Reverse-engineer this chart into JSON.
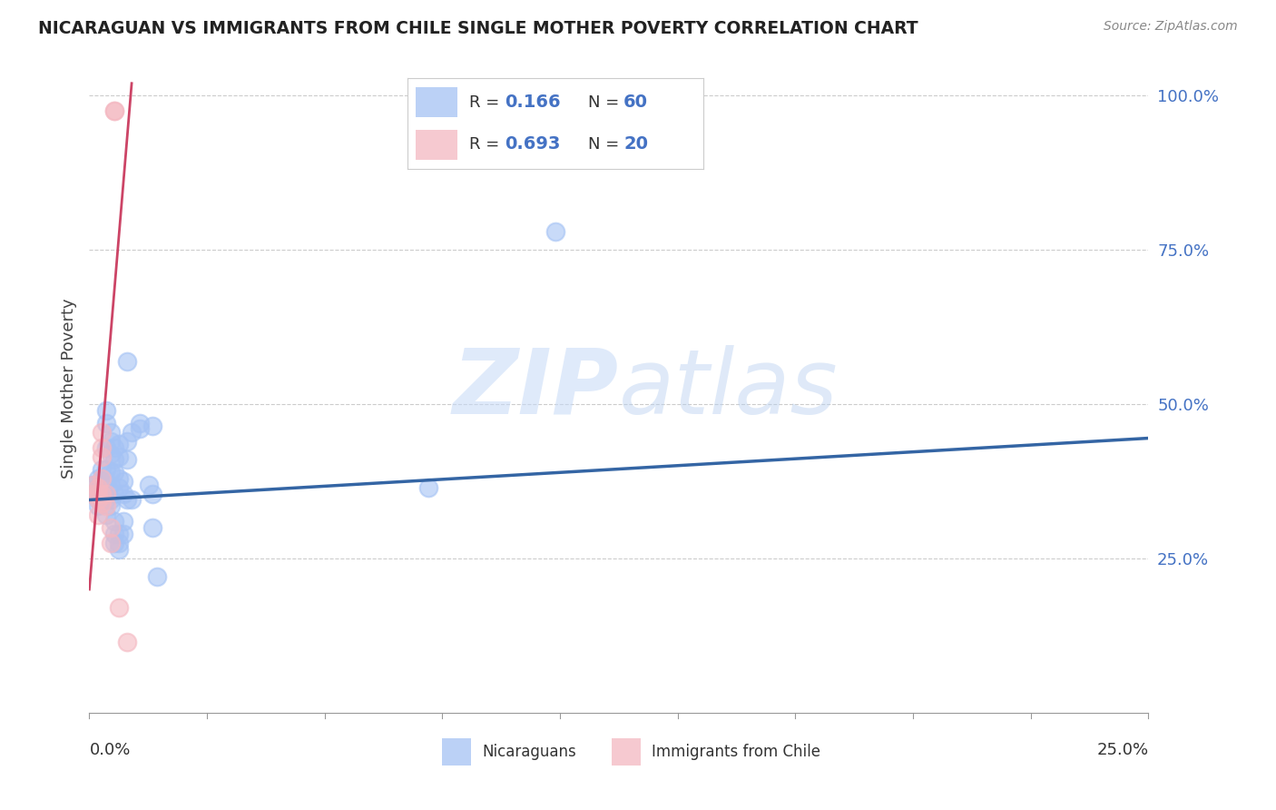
{
  "title": "NICARAGUAN VS IMMIGRANTS FROM CHILE SINGLE MOTHER POVERTY CORRELATION CHART",
  "source": "Source: ZipAtlas.com",
  "ylabel": "Single Mother Poverty",
  "ytick_labels": [
    "100.0%",
    "75.0%",
    "50.0%",
    "25.0%"
  ],
  "ytick_positions": [
    1.0,
    0.75,
    0.5,
    0.25
  ],
  "xlim": [
    0.0,
    0.25
  ],
  "ylim": [
    0.0,
    1.05
  ],
  "blue_color": "#a4c2f4",
  "pink_color": "#f4b8c1",
  "blue_line_color": "#3465a4",
  "pink_line_color": "#cc4466",
  "watermark_zip": "ZIP",
  "watermark_atlas": "atlas",
  "blue_scatter": [
    [
      0.001,
      0.355
    ],
    [
      0.001,
      0.37
    ],
    [
      0.002,
      0.36
    ],
    [
      0.002,
      0.38
    ],
    [
      0.002,
      0.355
    ],
    [
      0.002,
      0.365
    ],
    [
      0.002,
      0.345
    ],
    [
      0.002,
      0.335
    ],
    [
      0.003,
      0.355
    ],
    [
      0.003,
      0.38
    ],
    [
      0.003,
      0.395
    ],
    [
      0.003,
      0.365
    ],
    [
      0.003,
      0.355
    ],
    [
      0.003,
      0.345
    ],
    [
      0.004,
      0.47
    ],
    [
      0.004,
      0.49
    ],
    [
      0.004,
      0.43
    ],
    [
      0.004,
      0.395
    ],
    [
      0.004,
      0.375
    ],
    [
      0.004,
      0.355
    ],
    [
      0.004,
      0.345
    ],
    [
      0.004,
      0.32
    ],
    [
      0.005,
      0.455
    ],
    [
      0.005,
      0.44
    ],
    [
      0.005,
      0.42
    ],
    [
      0.005,
      0.39
    ],
    [
      0.005,
      0.37
    ],
    [
      0.005,
      0.345
    ],
    [
      0.005,
      0.335
    ],
    [
      0.006,
      0.43
    ],
    [
      0.006,
      0.41
    ],
    [
      0.006,
      0.39
    ],
    [
      0.006,
      0.355
    ],
    [
      0.006,
      0.31
    ],
    [
      0.006,
      0.29
    ],
    [
      0.006,
      0.275
    ],
    [
      0.007,
      0.435
    ],
    [
      0.007,
      0.415
    ],
    [
      0.007,
      0.38
    ],
    [
      0.007,
      0.365
    ],
    [
      0.007,
      0.29
    ],
    [
      0.007,
      0.275
    ],
    [
      0.007,
      0.265
    ],
    [
      0.008,
      0.375
    ],
    [
      0.008,
      0.355
    ],
    [
      0.008,
      0.31
    ],
    [
      0.008,
      0.29
    ],
    [
      0.009,
      0.57
    ],
    [
      0.009,
      0.44
    ],
    [
      0.009,
      0.41
    ],
    [
      0.009,
      0.345
    ],
    [
      0.01,
      0.455
    ],
    [
      0.01,
      0.345
    ],
    [
      0.012,
      0.47
    ],
    [
      0.012,
      0.46
    ],
    [
      0.014,
      0.37
    ],
    [
      0.015,
      0.465
    ],
    [
      0.015,
      0.355
    ],
    [
      0.015,
      0.3
    ],
    [
      0.016,
      0.22
    ],
    [
      0.08,
      0.365
    ],
    [
      0.11,
      0.78
    ]
  ],
  "pink_scatter": [
    [
      0.001,
      0.355
    ],
    [
      0.001,
      0.37
    ],
    [
      0.002,
      0.365
    ],
    [
      0.002,
      0.355
    ],
    [
      0.002,
      0.345
    ],
    [
      0.002,
      0.32
    ],
    [
      0.003,
      0.455
    ],
    [
      0.003,
      0.43
    ],
    [
      0.003,
      0.415
    ],
    [
      0.003,
      0.38
    ],
    [
      0.003,
      0.355
    ],
    [
      0.003,
      0.34
    ],
    [
      0.004,
      0.355
    ],
    [
      0.004,
      0.335
    ],
    [
      0.005,
      0.3
    ],
    [
      0.005,
      0.275
    ],
    [
      0.006,
      0.975
    ],
    [
      0.006,
      0.975
    ],
    [
      0.007,
      0.17
    ],
    [
      0.009,
      0.115
    ]
  ],
  "blue_trend_x": [
    0.0,
    0.25
  ],
  "blue_trend_y": [
    0.345,
    0.445
  ],
  "pink_trend_x": [
    0.0,
    0.01
  ],
  "pink_trend_y": [
    0.2,
    1.02
  ]
}
